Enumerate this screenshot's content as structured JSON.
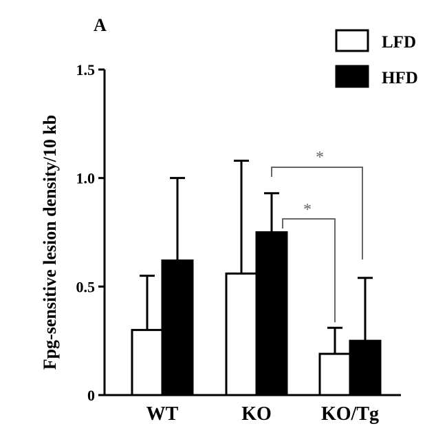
{
  "panel_label": "A",
  "chart_data": {
    "type": "bar",
    "categories": [
      "WT",
      "KO",
      "KO/Tg"
    ],
    "series": [
      {
        "name": "LFD",
        "color": "#ffffff",
        "values": [
          0.3,
          0.56,
          0.19
        ],
        "errors": [
          0.25,
          0.52,
          0.12
        ]
      },
      {
        "name": "HFD",
        "color": "#000000",
        "values": [
          0.62,
          0.75,
          0.25
        ],
        "errors": [
          0.38,
          0.18,
          0.29
        ]
      }
    ],
    "ylabel": "Fpg-sensitive lesion density/10 kb",
    "xlabel": "",
    "ylim": [
      0,
      1.5
    ],
    "yticks": [
      0,
      0.5,
      1.0,
      1.5
    ],
    "ytick_labels": [
      "0",
      "0.5",
      "1.0",
      "1.5"
    ],
    "legend": {
      "position": "top-right",
      "entries": [
        "LFD",
        "HFD"
      ]
    },
    "grid": false,
    "significance": [
      {
        "from": "KO HFD",
        "to": "KO/Tg LFD",
        "label": "*"
      },
      {
        "from": "KO HFD",
        "to": "KO/Tg HFD",
        "label": "*"
      }
    ]
  }
}
